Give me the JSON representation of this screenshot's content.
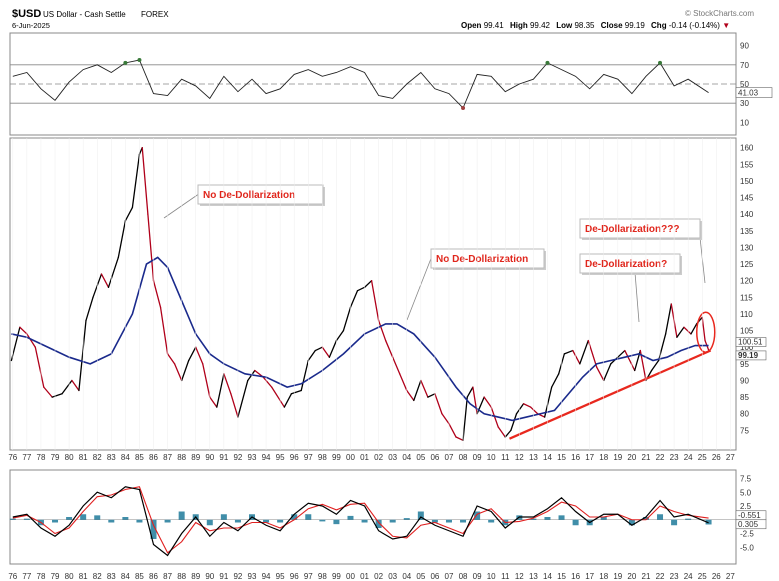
{
  "header": {
    "symbol": "$USD",
    "name": "US Dollar - Cash Settle",
    "exchange": "FOREX",
    "date": "6-Jun-2025",
    "brand": "© StockCharts.com",
    "quote": {
      "open_label": "Open",
      "open": "99.41",
      "high_label": "High",
      "high": "99.42",
      "low_label": "Low",
      "low": "98.35",
      "close_label": "Close",
      "close": "99.19",
      "chg_label": "Chg",
      "chg": "-0.14 (-0.14%)"
    }
  },
  "colors": {
    "price_up": "#000000",
    "price_down": "#b0001a",
    "moving_average": "#1a2a8c",
    "trendline": "#e8281e",
    "annotation": "#e0261c",
    "rsi_overbought_fill": "#3a7a3a",
    "rsi_oversold_fill": "#a04040",
    "macd_line": "#000000",
    "macd_signal": "#e02020",
    "macd_histogram": "#1f7a9a"
  },
  "chart_data": [
    {
      "type": "line",
      "panel": "rsi",
      "yticks": [
        10,
        30,
        50,
        70,
        90
      ],
      "ylim": [
        0,
        100
      ],
      "reference_lines": [
        30,
        50,
        70
      ],
      "last_value_label": "41.03",
      "x": [
        1976,
        1977,
        1978,
        1979,
        1980,
        1981,
        1982,
        1983,
        1984,
        1985,
        1986,
        1987,
        1988,
        1989,
        1990,
        1991,
        1992,
        1993,
        1994,
        1995,
        1996,
        1997,
        1998,
        1999,
        2000,
        2001,
        2002,
        2003,
        2004,
        2005,
        2006,
        2007,
        2008,
        2009,
        2010,
        2011,
        2012,
        2013,
        2014,
        2015,
        2016,
        2017,
        2018,
        2019,
        2020,
        2021,
        2022,
        2023,
        2024,
        2025.45
      ],
      "values": [
        58,
        62,
        45,
        33,
        52,
        65,
        70,
        62,
        72,
        75,
        40,
        38,
        55,
        48,
        35,
        58,
        42,
        55,
        40,
        45,
        60,
        65,
        58,
        62,
        68,
        62,
        38,
        35,
        50,
        62,
        45,
        40,
        25,
        60,
        58,
        42,
        50,
        55,
        72,
        65,
        58,
        45,
        60,
        55,
        40,
        58,
        72,
        48,
        55,
        41
      ]
    },
    {
      "type": "line",
      "panel": "price",
      "ylabel": "",
      "yticks": [
        75,
        80,
        85,
        90,
        95,
        100,
        105,
        110,
        115,
        120,
        125,
        130,
        135,
        140,
        145,
        150,
        155,
        160
      ],
      "ylim": [
        70,
        162
      ],
      "xticks": [
        "76",
        "77",
        "78",
        "79",
        "80",
        "81",
        "82",
        "83",
        "84",
        "85",
        "86",
        "87",
        "88",
        "89",
        "90",
        "91",
        "92",
        "93",
        "94",
        "95",
        "96",
        "97",
        "98",
        "99",
        "00",
        "01",
        "02",
        "03",
        "04",
        "05",
        "06",
        "07",
        "08",
        "09",
        "10",
        "11",
        "12",
        "13",
        "14",
        "15",
        "16",
        "17",
        "18",
        "19",
        "20",
        "21",
        "22",
        "23",
        "24",
        "25",
        "26",
        "27"
      ],
      "xlim": [
        1975.8,
        2027.4
      ],
      "last_value_labels": [
        "100.51",
        "99.19"
      ],
      "series": [
        {
          "role": "price",
          "x": [
            1975.9,
            1976.5,
            1977.0,
            1977.6,
            1978.2,
            1978.8,
            1979.5,
            1980.2,
            1980.7,
            1981.2,
            1981.7,
            1982.3,
            1982.8,
            1983.5,
            1984.0,
            1984.5,
            1985.0,
            1985.2,
            1985.6,
            1986.0,
            1986.5,
            1987.0,
            1987.5,
            1988.0,
            1988.5,
            1989.0,
            1989.5,
            1990.0,
            1990.5,
            1991.0,
            1991.5,
            1992.0,
            1992.7,
            1993.2,
            1993.8,
            1994.4,
            1995.0,
            1995.3,
            1995.8,
            1996.5,
            1997.0,
            1997.5,
            1998.0,
            1998.5,
            1999.0,
            1999.5,
            2000.0,
            2000.5,
            2001.0,
            2001.5,
            2002.0,
            2002.5,
            2003.0,
            2003.5,
            2004.0,
            2004.5,
            2005.0,
            2005.5,
            2006.0,
            2006.5,
            2007.0,
            2007.5,
            2008.0,
            2008.3,
            2008.7,
            2009.0,
            2009.5,
            2010.0,
            2010.5,
            2011.0,
            2011.4,
            2011.8,
            2012.3,
            2012.8,
            2013.3,
            2013.8,
            2014.3,
            2014.8,
            2015.2,
            2015.8,
            2016.3,
            2016.9,
            2017.5,
            2018.0,
            2018.5,
            2019.0,
            2019.5,
            2020.2,
            2020.6,
            2021.0,
            2021.4,
            2021.9,
            2022.4,
            2022.8,
            2023.2,
            2023.7,
            2024.2,
            2024.6,
            2025.0,
            2025.2,
            2025.45
          ],
          "values": [
            96,
            106,
            104,
            100,
            88,
            85,
            86,
            90,
            87,
            108,
            115,
            122,
            118,
            127,
            138,
            142,
            158,
            160,
            140,
            120,
            112,
            98,
            95,
            90,
            96,
            100,
            95,
            85,
            82,
            92,
            86,
            79,
            90,
            93,
            91,
            88,
            84,
            82,
            86,
            87,
            96,
            99,
            100,
            97,
            102,
            105,
            112,
            117,
            118,
            120,
            108,
            102,
            97,
            92,
            87,
            84,
            90,
            85,
            86,
            80,
            77,
            73,
            72,
            85,
            88,
            80,
            85,
            82,
            76,
            73,
            75,
            80,
            83,
            82,
            80,
            79,
            88,
            92,
            98,
            99,
            95,
            102,
            94,
            90,
            95,
            97,
            99,
            93,
            99,
            90,
            93,
            96,
            104,
            113,
            103,
            106,
            104,
            107,
            109,
            102,
            99.19
          ]
        },
        {
          "role": "moving_average",
          "x": [
            1975.9,
            1977.0,
            1978.5,
            1980.0,
            1981.5,
            1983.0,
            1984.5,
            1985.5,
            1986.3,
            1987.0,
            1988.0,
            1989.0,
            1990.0,
            1991.0,
            1992.5,
            1994.0,
            1995.5,
            1996.5,
            1998.0,
            1999.5,
            2001.0,
            2002.5,
            2003.3,
            2004.5,
            2006.0,
            2007.5,
            2008.5,
            2009.5,
            2010.5,
            2011.5,
            2012.5,
            2013.5,
            2014.5,
            2015.5,
            2016.5,
            2017.5,
            2018.5,
            2019.5,
            2020.5,
            2021.5,
            2022.5,
            2023.5,
            2024.5,
            2025.45
          ],
          "values": [
            104,
            103,
            100,
            97,
            95,
            98,
            110,
            125,
            127,
            124,
            114,
            104,
            98,
            95,
            92,
            91,
            88,
            89,
            93,
            98,
            104,
            107,
            107,
            104,
            97,
            88,
            83,
            80,
            79,
            78,
            79,
            80,
            81,
            86,
            91,
            95,
            96,
            97,
            98,
            96,
            97,
            99,
            100.5,
            100.51
          ]
        }
      ],
      "trendline": {
        "x": [
          2011.3,
          2025.6
        ],
        "values": [
          72.5,
          99
        ]
      },
      "annotations": [
        {
          "text": "No De-Dollarization",
          "x": 1986.6,
          "value": 128
        },
        {
          "text": "No De-Dollarization",
          "x": 2003.2,
          "value": 103
        },
        {
          "text": "De-Dollarization???",
          "x": 2024.8,
          "value": 110
        },
        {
          "text": "De-Dollarization?",
          "x": 2021.7,
          "value": 99
        }
      ]
    },
    {
      "type": "line",
      "panel": "macd",
      "yticks": [
        "7.5",
        "5.0",
        "2.5",
        "0.0",
        "-2.5",
        "-5.0"
      ],
      "ylim": [
        -7.5,
        8.5
      ],
      "last_value_labels": [
        "-0.551",
        "0.305"
      ],
      "x": [
        1976,
        1977,
        1978,
        1979,
        1980,
        1981,
        1982,
        1983,
        1984,
        1985,
        1986,
        1987,
        1988,
        1989,
        1990,
        1991,
        1992,
        1993,
        1994,
        1995,
        1996,
        1997,
        1998,
        1999,
        2000,
        2001,
        2002,
        2003,
        2004,
        2005,
        2006,
        2007,
        2008,
        2009,
        2010,
        2011,
        2012,
        2013,
        2014,
        2015,
        2016,
        2017,
        2018,
        2019,
        2020,
        2021,
        2022,
        2023,
        2024,
        2025.45
      ],
      "series": [
        {
          "name": "macd",
          "values": [
            0.5,
            1.0,
            -1.5,
            -3.0,
            -1.0,
            2.5,
            5.0,
            4.0,
            6.0,
            5.5,
            -4.5,
            -6.5,
            -2.5,
            0.5,
            -3.0,
            -0.5,
            -2.0,
            0.5,
            -1.0,
            -2.0,
            1.0,
            3.0,
            2.5,
            1.0,
            3.5,
            2.5,
            -2.0,
            -3.5,
            -3.0,
            0.5,
            -1.0,
            -2.0,
            -3.0,
            2.5,
            1.5,
            -1.5,
            0.5,
            0.5,
            2.0,
            4.0,
            1.5,
            -0.5,
            1.0,
            1.0,
            -1.0,
            0.5,
            3.5,
            0.5,
            1.0,
            -0.551
          ]
        },
        {
          "name": "signal",
          "values": [
            0.3,
            0.8,
            -0.5,
            -2.5,
            -1.5,
            1.5,
            4.2,
            4.5,
            5.5,
            6.0,
            -1.0,
            -6.0,
            -4.0,
            -0.5,
            -2.0,
            -1.5,
            -1.5,
            -0.5,
            -0.5,
            -1.5,
            0.0,
            2.0,
            2.8,
            1.8,
            2.8,
            3.0,
            -0.5,
            -3.0,
            -3.3,
            -1.0,
            -0.5,
            -1.5,
            -2.5,
            1.0,
            2.0,
            -0.5,
            -0.3,
            0.3,
            1.5,
            3.2,
            2.5,
            0.5,
            0.5,
            1.0,
            0.0,
            0.0,
            2.5,
            1.5,
            0.8,
            0.305
          ]
        }
      ]
    }
  ]
}
